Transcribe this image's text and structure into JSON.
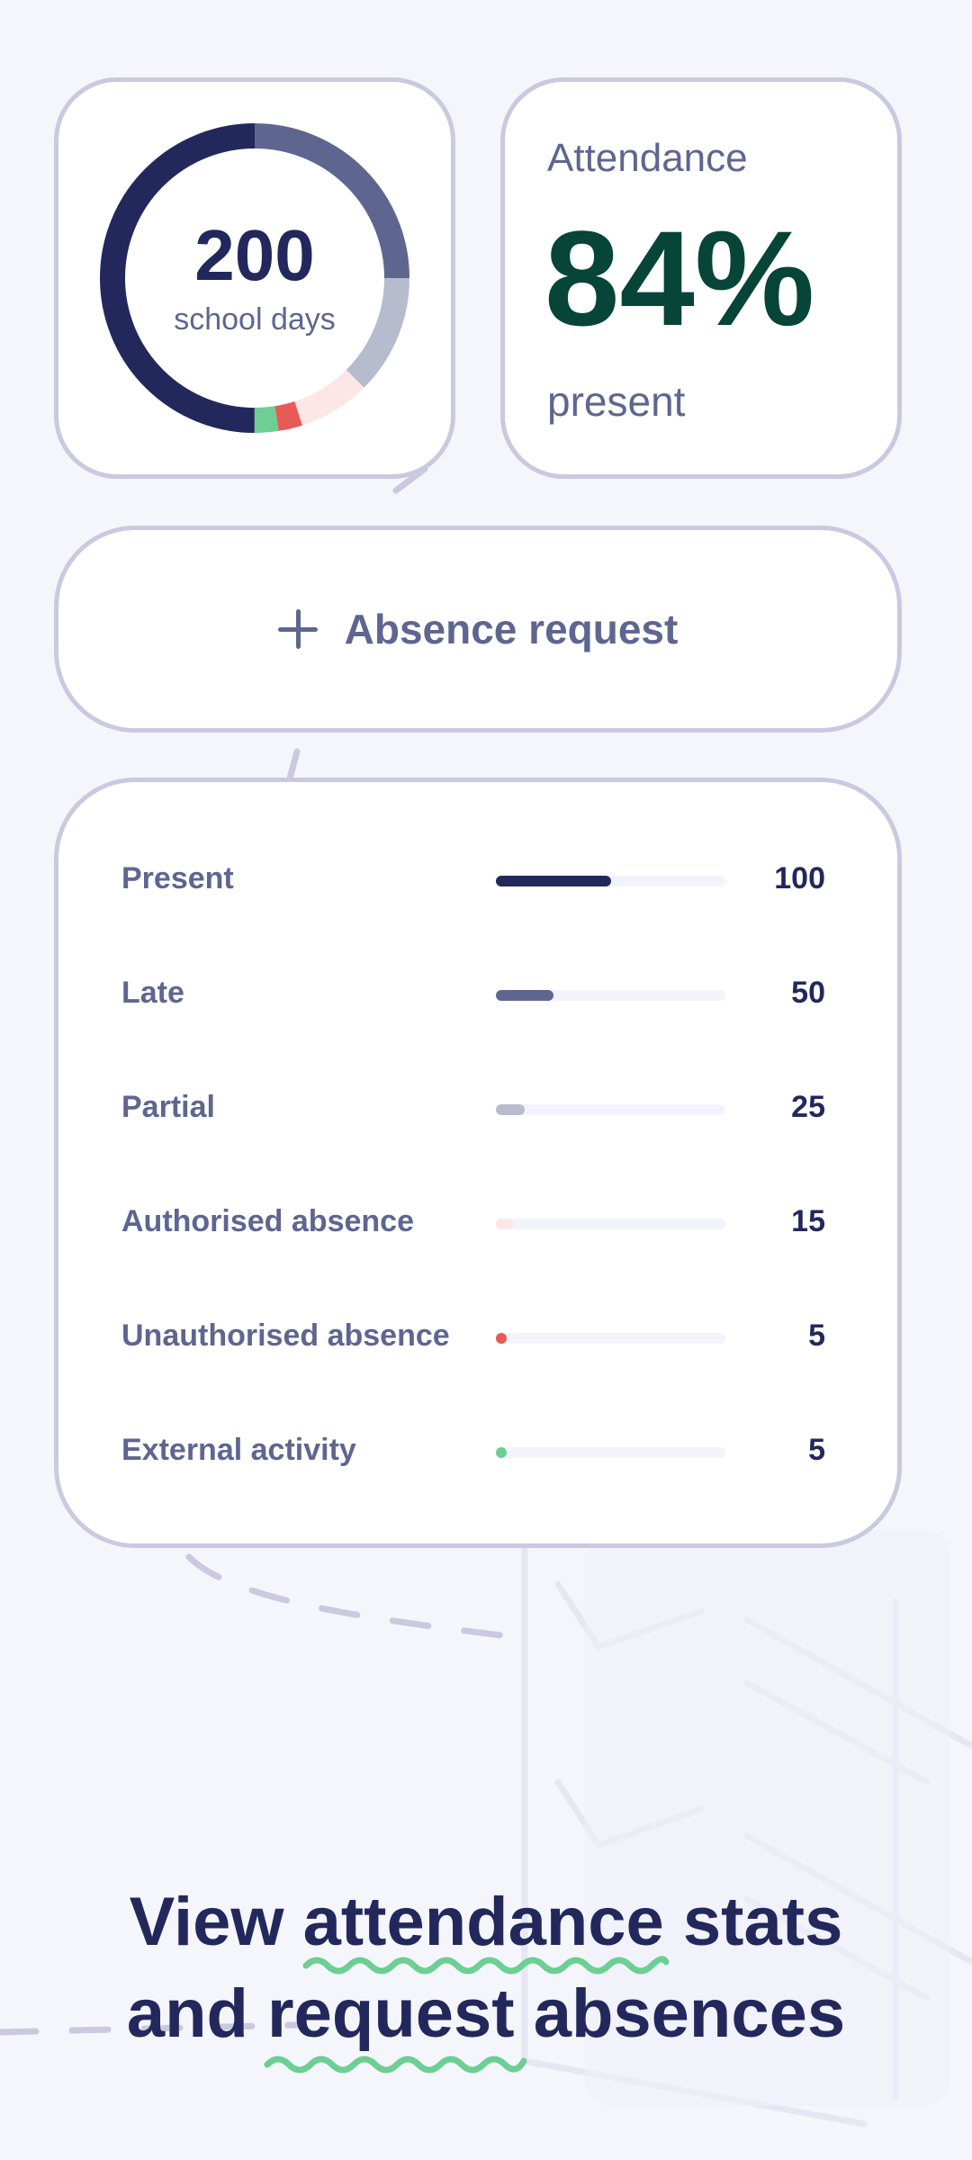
{
  "summary": {
    "days_value": "200",
    "days_label": "school days",
    "donut_segments": [
      {
        "name": "Present",
        "value": 100,
        "color": "#23285c"
      },
      {
        "name": "Late",
        "value": 50,
        "color": "#5e6690"
      },
      {
        "name": "Partial",
        "value": 25,
        "color": "#b6bbcd"
      },
      {
        "name": "Authorised absence",
        "value": 15,
        "color": "#fde6e6"
      },
      {
        "name": "Unauthorised absence",
        "value": 5,
        "color": "#e85a56"
      },
      {
        "name": "External activity",
        "value": 5,
        "color": "#6dcf93"
      }
    ]
  },
  "attendance": {
    "title": "Attendance",
    "value": "84%",
    "subtitle": "present"
  },
  "absence_request": {
    "label": "Absence request",
    "icon": "plus-icon"
  },
  "stats": {
    "max": 200,
    "rows": [
      {
        "label": "Present",
        "value": 100,
        "color": "#23285c"
      },
      {
        "label": "Late",
        "value": 50,
        "color": "#5e6690"
      },
      {
        "label": "Partial",
        "value": 25,
        "color": "#b6bbcd"
      },
      {
        "label": "Authorised absence",
        "value": 15,
        "color": "#fde6e6"
      },
      {
        "label": "Unauthorised absence",
        "value": 5,
        "color": "#e85a56"
      },
      {
        "label": "External activity",
        "value": 5,
        "color": "#6dcf93"
      }
    ]
  },
  "headline": {
    "line1": "View attendance stats",
    "line2": "and request absences",
    "accent_color": "#6dcf93"
  },
  "colors": {
    "background": "#f5f6fc",
    "card_border": "#c9c9e0",
    "primary_text": "#23285c",
    "secondary_text": "#5e6690",
    "attendance_value": "#064537"
  }
}
